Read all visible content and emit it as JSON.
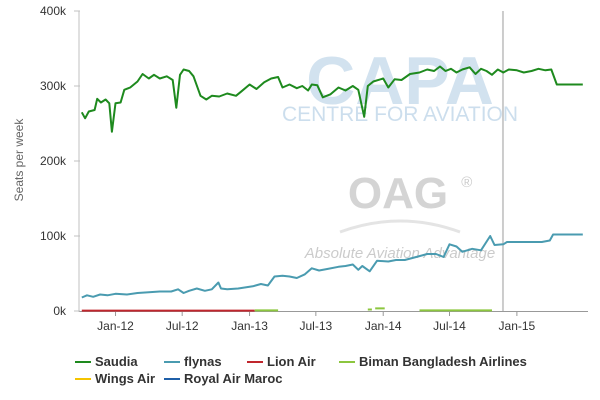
{
  "watermark": {
    "capa_text": "CAPA",
    "capa_sub": "CENTRE FOR AVIATION",
    "oag_text": "OAG",
    "oag_reg": "®",
    "oag_tagline": "Absolute Aviation Advantage"
  },
  "chart_data": {
    "type": "line",
    "title": "",
    "xlabel": "",
    "ylabel": "Seats per week",
    "ylim": [
      0,
      400000
    ],
    "xlim": [
      "2011-09-26",
      "2015-07-06"
    ],
    "y_ticks": [
      {
        "value": 0,
        "label": "0k"
      },
      {
        "value": 100000,
        "label": "100k"
      },
      {
        "value": 200000,
        "label": "200k"
      },
      {
        "value": 300000,
        "label": "300k"
      },
      {
        "value": 400000,
        "label": "400k"
      }
    ],
    "x_ticks": [
      {
        "date": "2012-01-01",
        "label": "Jan-12"
      },
      {
        "date": "2012-07-01",
        "label": "Jul-12"
      },
      {
        "date": "2013-01-01",
        "label": "Jan-13"
      },
      {
        "date": "2013-07-01",
        "label": "Jul-13"
      },
      {
        "date": "2014-01-01",
        "label": "Jan-14"
      },
      {
        "date": "2014-07-01",
        "label": "Jul-14"
      },
      {
        "date": "2015-01-01",
        "label": "Jan-15"
      }
    ],
    "marker_line_date": "2014-11-24",
    "grid": false,
    "legend_position": "bottom",
    "series": [
      {
        "name": "Saudia",
        "color": "#1e8a1e",
        "points": [
          [
            "2011-10-01",
            265000
          ],
          [
            "2011-10-10",
            257000
          ],
          [
            "2011-10-20",
            266000
          ],
          [
            "2011-11-05",
            268000
          ],
          [
            "2011-11-12",
            283000
          ],
          [
            "2011-11-22",
            278000
          ],
          [
            "2011-12-05",
            282000
          ],
          [
            "2011-12-15",
            277000
          ],
          [
            "2011-12-22",
            239000
          ],
          [
            "2012-01-01",
            277000
          ],
          [
            "2012-01-15",
            278000
          ],
          [
            "2012-01-25",
            295000
          ],
          [
            "2012-02-10",
            298000
          ],
          [
            "2012-03-01",
            306000
          ],
          [
            "2012-03-15",
            316000
          ],
          [
            "2012-04-01",
            310000
          ],
          [
            "2012-04-15",
            315000
          ],
          [
            "2012-05-01",
            310000
          ],
          [
            "2012-05-20",
            313000
          ],
          [
            "2012-06-05",
            308000
          ],
          [
            "2012-06-15",
            271000
          ],
          [
            "2012-06-25",
            315000
          ],
          [
            "2012-07-05",
            322000
          ],
          [
            "2012-07-20",
            320000
          ],
          [
            "2012-08-01",
            313000
          ],
          [
            "2012-08-20",
            287000
          ],
          [
            "2012-09-05",
            282000
          ],
          [
            "2012-09-20",
            287000
          ],
          [
            "2012-10-10",
            286000
          ],
          [
            "2012-11-01",
            290000
          ],
          [
            "2012-11-25",
            287000
          ],
          [
            "2012-12-10",
            293000
          ],
          [
            "2013-01-01",
            302000
          ],
          [
            "2013-01-20",
            296000
          ],
          [
            "2013-02-10",
            305000
          ],
          [
            "2013-03-01",
            310000
          ],
          [
            "2013-03-20",
            312000
          ],
          [
            "2013-04-01",
            298000
          ],
          [
            "2013-04-20",
            302000
          ],
          [
            "2013-05-10",
            297000
          ],
          [
            "2013-05-25",
            300000
          ],
          [
            "2013-06-10",
            294000
          ],
          [
            "2013-06-20",
            302000
          ],
          [
            "2013-07-05",
            301000
          ],
          [
            "2013-07-20",
            285000
          ],
          [
            "2013-08-10",
            289000
          ],
          [
            "2013-09-01",
            298000
          ],
          [
            "2013-09-20",
            294000
          ],
          [
            "2013-10-10",
            300000
          ],
          [
            "2013-10-25",
            295000
          ],
          [
            "2013-11-10",
            259000
          ],
          [
            "2013-11-20",
            300000
          ],
          [
            "2013-12-05",
            306000
          ],
          [
            "2014-01-01",
            310000
          ],
          [
            "2014-01-15",
            298000
          ],
          [
            "2014-02-01",
            309000
          ],
          [
            "2014-02-20",
            308000
          ],
          [
            "2014-03-15",
            316000
          ],
          [
            "2014-04-10",
            318000
          ],
          [
            "2014-05-01",
            322000
          ],
          [
            "2014-05-20",
            320000
          ],
          [
            "2014-06-05",
            326000
          ],
          [
            "2014-06-20",
            320000
          ],
          [
            "2014-07-05",
            323000
          ],
          [
            "2014-07-20",
            318000
          ],
          [
            "2014-08-05",
            322000
          ],
          [
            "2014-08-25",
            325000
          ],
          [
            "2014-09-10",
            316000
          ],
          [
            "2014-09-25",
            323000
          ],
          [
            "2014-10-10",
            320000
          ],
          [
            "2014-10-25",
            315000
          ],
          [
            "2014-11-10",
            322000
          ],
          [
            "2014-11-25",
            318000
          ],
          [
            "2014-12-10",
            322000
          ],
          [
            "2015-01-01",
            321000
          ],
          [
            "2015-01-20",
            318000
          ],
          [
            "2015-02-10",
            320000
          ],
          [
            "2015-03-01",
            323000
          ],
          [
            "2015-03-20",
            321000
          ],
          [
            "2015-04-05",
            322000
          ],
          [
            "2015-04-20",
            302000
          ],
          [
            "2015-06-30",
            302000
          ]
        ]
      },
      {
        "name": "flynas",
        "color": "#4a9bb0",
        "points": [
          [
            "2011-10-01",
            18000
          ],
          [
            "2011-10-15",
            21000
          ],
          [
            "2011-11-01",
            19000
          ],
          [
            "2011-11-20",
            22000
          ],
          [
            "2011-12-10",
            21000
          ],
          [
            "2012-01-01",
            23000
          ],
          [
            "2012-02-01",
            22000
          ],
          [
            "2012-03-01",
            24000
          ],
          [
            "2012-04-01",
            25000
          ],
          [
            "2012-05-01",
            26000
          ],
          [
            "2012-06-01",
            26000
          ],
          [
            "2012-06-20",
            29000
          ],
          [
            "2012-07-05",
            24000
          ],
          [
            "2012-07-20",
            27000
          ],
          [
            "2012-08-10",
            30000
          ],
          [
            "2012-09-01",
            27000
          ],
          [
            "2012-09-20",
            29000
          ],
          [
            "2012-10-08",
            38000
          ],
          [
            "2012-10-15",
            30000
          ],
          [
            "2012-11-01",
            29000
          ],
          [
            "2012-12-01",
            30000
          ],
          [
            "2013-01-10",
            33000
          ],
          [
            "2013-02-01",
            36000
          ],
          [
            "2013-02-20",
            34000
          ],
          [
            "2013-03-10",
            46000
          ],
          [
            "2013-04-01",
            47000
          ],
          [
            "2013-04-20",
            46000
          ],
          [
            "2013-05-10",
            44000
          ],
          [
            "2013-06-01",
            49000
          ],
          [
            "2013-06-20",
            57000
          ],
          [
            "2013-07-10",
            54000
          ],
          [
            "2013-08-01",
            56000
          ],
          [
            "2013-09-01",
            59000
          ],
          [
            "2013-09-20",
            60000
          ],
          [
            "2013-10-10",
            62000
          ],
          [
            "2013-10-25",
            55000
          ],
          [
            "2013-11-05",
            60000
          ],
          [
            "2013-11-25",
            53000
          ],
          [
            "2013-12-15",
            67000
          ],
          [
            "2014-01-15",
            66000
          ],
          [
            "2014-02-05",
            68000
          ],
          [
            "2014-03-01",
            68000
          ],
          [
            "2014-04-01",
            72000
          ],
          [
            "2014-05-01",
            76000
          ],
          [
            "2014-05-25",
            76000
          ],
          [
            "2014-06-15",
            72000
          ],
          [
            "2014-07-01",
            89000
          ],
          [
            "2014-07-20",
            86000
          ],
          [
            "2014-08-05",
            79000
          ],
          [
            "2014-09-01",
            83000
          ],
          [
            "2014-09-25",
            81000
          ],
          [
            "2014-10-20",
            100000
          ],
          [
            "2014-11-01",
            88000
          ],
          [
            "2014-11-25",
            89000
          ],
          [
            "2014-12-05",
            92000
          ],
          [
            "2015-03-10",
            92000
          ],
          [
            "2015-04-01",
            94000
          ],
          [
            "2015-04-10",
            102000
          ],
          [
            "2015-06-30",
            102000
          ]
        ]
      },
      {
        "name": "Lion Air",
        "color": "#c0262d",
        "points": [
          [
            "2011-10-01",
            500
          ],
          [
            "2013-01-15",
            500
          ]
        ]
      },
      {
        "name": "Biman Bangladesh Airlines",
        "color": "#8cc63f",
        "points": [
          [
            "2013-01-15",
            800
          ],
          [
            "2013-03-20",
            800
          ],
          [
            "2013-03-21",
            null
          ],
          [
            "2013-11-20",
            2000
          ],
          [
            "2013-12-01",
            2000
          ],
          [
            "2013-12-02",
            null
          ],
          [
            "2013-12-10",
            3500
          ],
          [
            "2014-01-05",
            3500
          ],
          [
            "2014-01-06",
            null
          ],
          [
            "2014-04-10",
            800
          ],
          [
            "2014-10-25",
            800
          ]
        ]
      },
      {
        "name": "Wings Air",
        "color": "#f5c400",
        "points": []
      },
      {
        "name": "Royal Air Maroc",
        "color": "#1f5fa8",
        "points": []
      }
    ]
  }
}
